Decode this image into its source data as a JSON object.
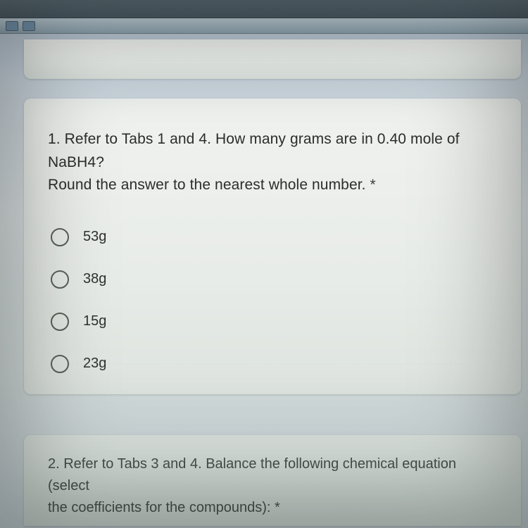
{
  "browser": {
    "toolbar_bg": "#4a5a62"
  },
  "card_bg": "#e8ece8",
  "accent_band": "#88c0dc",
  "question1": {
    "line1": "1. Refer to Tabs 1 and 4. How many grams are in 0.40 mole of NaBH4?",
    "line2": "Round the answer to the nearest whole number. ",
    "required_mark": "*",
    "options": [
      {
        "label": "53g"
      },
      {
        "label": "38g"
      },
      {
        "label": "15g"
      },
      {
        "label": "23g"
      }
    ]
  },
  "question2": {
    "line1": "2. Refer to Tabs 3 and 4. Balance the following chemical equation (select",
    "line2": "the coefficients for the compounds): *"
  },
  "text_color": "#2a2e2c",
  "radio_border": "#5a6058"
}
